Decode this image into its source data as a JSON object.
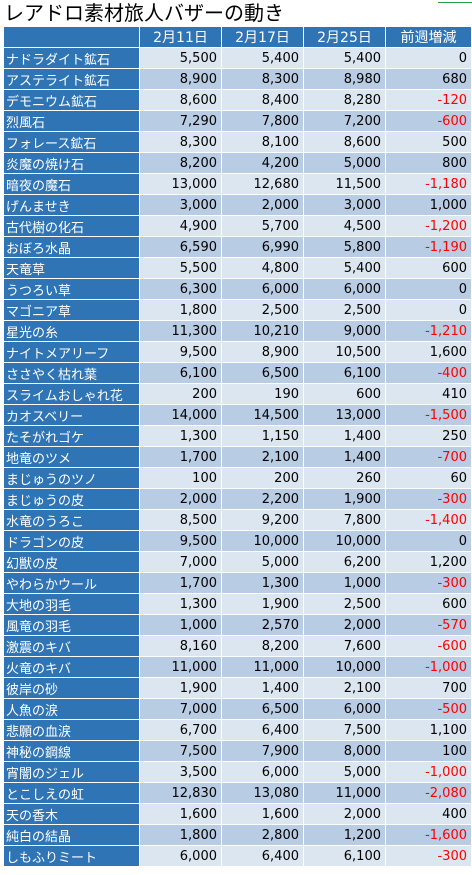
{
  "title": "レアドロ素材旅人バザーの動き",
  "headers": [
    "",
    "2月11日",
    "2月17日",
    "2月25日",
    "前週増減"
  ],
  "rows": [
    {
      "name": "ナドラダイト鉱石",
      "v1": "5,500",
      "v2": "5,400",
      "v3": "5,400",
      "diff": "0"
    },
    {
      "name": "アステライト鉱石",
      "v1": "8,900",
      "v2": "8,300",
      "v3": "8,980",
      "diff": "680"
    },
    {
      "name": "デモニウム鉱石",
      "v1": "8,600",
      "v2": "8,400",
      "v3": "8,280",
      "diff": "-120"
    },
    {
      "name": "烈風石",
      "v1": "7,290",
      "v2": "7,800",
      "v3": "7,200",
      "diff": "-600"
    },
    {
      "name": "フォレース鉱石",
      "v1": "8,300",
      "v2": "8,100",
      "v3": "8,600",
      "diff": "500"
    },
    {
      "name": "炎魔の焼け石",
      "v1": "8,200",
      "v2": "4,200",
      "v3": "5,000",
      "diff": "800"
    },
    {
      "name": "暗夜の魔石",
      "v1": "13,000",
      "v2": "12,680",
      "v3": "11,500",
      "diff": "-1,180"
    },
    {
      "name": "げんませき",
      "v1": "3,000",
      "v2": "2,000",
      "v3": "3,000",
      "diff": "1,000"
    },
    {
      "name": "古代樹の化石",
      "v1": "4,900",
      "v2": "5,700",
      "v3": "4,500",
      "diff": "-1,200"
    },
    {
      "name": "おぼろ水晶",
      "v1": "6,590",
      "v2": "6,990",
      "v3": "5,800",
      "diff": "-1,190"
    },
    {
      "name": "天竜草",
      "v1": "5,500",
      "v2": "4,800",
      "v3": "5,400",
      "diff": "600"
    },
    {
      "name": "うつろい草",
      "v1": "6,300",
      "v2": "6,000",
      "v3": "6,000",
      "diff": "0"
    },
    {
      "name": "マゴニア草",
      "v1": "1,800",
      "v2": "2,500",
      "v3": "2,500",
      "diff": "0"
    },
    {
      "name": "星光の糸",
      "v1": "11,300",
      "v2": "10,210",
      "v3": "9,000",
      "diff": "-1,210"
    },
    {
      "name": "ナイトメアリーフ",
      "v1": "9,500",
      "v2": "8,900",
      "v3": "10,500",
      "diff": "1,600"
    },
    {
      "name": "ささやく枯れ葉",
      "v1": "6,100",
      "v2": "6,500",
      "v3": "6,100",
      "diff": "-400"
    },
    {
      "name": "スライムおしゃれ花",
      "v1": "200",
      "v2": "190",
      "v3": "600",
      "diff": "410"
    },
    {
      "name": "カオスベリー",
      "v1": "14,000",
      "v2": "14,500",
      "v3": "13,000",
      "diff": "-1,500"
    },
    {
      "name": "たそがれゴケ",
      "v1": "1,300",
      "v2": "1,150",
      "v3": "1,400",
      "diff": "250"
    },
    {
      "name": "地竜のツメ",
      "v1": "1,700",
      "v2": "2,100",
      "v3": "1,400",
      "diff": "-700"
    },
    {
      "name": "まじゅうのツノ",
      "v1": "100",
      "v2": "200",
      "v3": "260",
      "diff": "60"
    },
    {
      "name": "まじゅうの皮",
      "v1": "2,000",
      "v2": "2,200",
      "v3": "1,900",
      "diff": "-300"
    },
    {
      "name": "水竜のうろこ",
      "v1": "8,500",
      "v2": "9,200",
      "v3": "7,800",
      "diff": "-1,400"
    },
    {
      "name": "ドラゴンの皮",
      "v1": "9,500",
      "v2": "10,000",
      "v3": "10,000",
      "diff": "0"
    },
    {
      "name": "幻獣の皮",
      "v1": "7,000",
      "v2": "5,000",
      "v3": "6,200",
      "diff": "1,200"
    },
    {
      "name": "やわらかウール",
      "v1": "1,700",
      "v2": "1,300",
      "v3": "1,000",
      "diff": "-300"
    },
    {
      "name": "大地の羽毛",
      "v1": "1,300",
      "v2": "1,900",
      "v3": "2,500",
      "diff": "600"
    },
    {
      "name": "風竜の羽毛",
      "v1": "1,000",
      "v2": "2,570",
      "v3": "2,000",
      "diff": "-570"
    },
    {
      "name": "激震のキバ",
      "v1": "8,160",
      "v2": "8,200",
      "v3": "7,600",
      "diff": "-600"
    },
    {
      "name": "火竜のキバ",
      "v1": "11,000",
      "v2": "11,000",
      "v3": "10,000",
      "diff": "-1,000"
    },
    {
      "name": "彼岸の砂",
      "v1": "1,900",
      "v2": "1,400",
      "v3": "2,100",
      "diff": "700"
    },
    {
      "name": "人魚の涙",
      "v1": "7,000",
      "v2": "6,500",
      "v3": "6,000",
      "diff": "-500"
    },
    {
      "name": "悲願の血涙",
      "v1": "6,700",
      "v2": "6,400",
      "v3": "7,500",
      "diff": "1,100"
    },
    {
      "name": "神秘の鋼線",
      "v1": "7,500",
      "v2": "7,900",
      "v3": "8,000",
      "diff": "100"
    },
    {
      "name": "宵闇のジェル",
      "v1": "3,500",
      "v2": "6,000",
      "v3": "5,000",
      "diff": "-1,000"
    },
    {
      "name": "とこしえの虹",
      "v1": "12,830",
      "v2": "13,080",
      "v3": "11,000",
      "diff": "-2,080"
    },
    {
      "name": "天の香木",
      "v1": "1,600",
      "v2": "1,600",
      "v3": "2,000",
      "diff": "400"
    },
    {
      "name": "純白の結晶",
      "v1": "1,800",
      "v2": "2,800",
      "v3": "1,200",
      "diff": "-1,600"
    },
    {
      "name": "しもふりミート",
      "v1": "6,000",
      "v2": "6,400",
      "v3": "6,100",
      "diff": "-300"
    }
  ],
  "colors": {
    "header": "#2f75b5",
    "odd_row": "#dce6f1",
    "even_row": "#b8cce4",
    "negative": "#ff0000"
  }
}
